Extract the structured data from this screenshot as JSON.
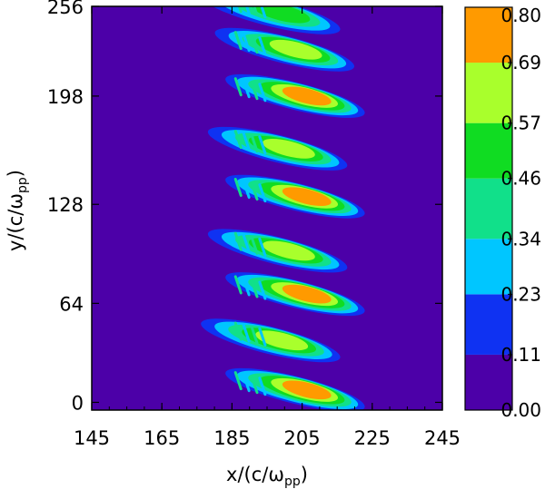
{
  "chart_data": {
    "type": "heatmap",
    "xlabel": {
      "base": "x/(c/",
      "omega": "ω",
      "sub": "pp",
      "close": ")"
    },
    "ylabel": {
      "base": "y/(c/",
      "omega": "ω",
      "sub": "pp",
      "close": ")"
    },
    "xlim": [
      145,
      245
    ],
    "ylim": [
      -5,
      256
    ],
    "x_ticks": [
      "145",
      "165",
      "185",
      "205",
      "225",
      "245"
    ],
    "x_tick_values": [
      145,
      165,
      185,
      205,
      225,
      245
    ],
    "y_ticks": [
      "0",
      "64",
      "128",
      "198",
      "256"
    ],
    "y_tick_values": [
      0,
      64,
      128,
      198,
      256
    ],
    "colorbar": {
      "labels": [
        "0.00",
        "0.11",
        "0.23",
        "0.34",
        "0.46",
        "0.57",
        "0.69",
        "0.80"
      ],
      "levels": [
        0.0,
        0.11,
        0.23,
        0.34,
        0.46,
        0.57,
        0.69,
        0.8
      ],
      "colors": [
        "#4c00a8",
        "#0f32f2",
        "#00c6ff",
        "#11e08a",
        "#10dc22",
        "#a9ff2c",
        "#ff9a00"
      ]
    },
    "background_value": 0.0,
    "structures": [
      {
        "y": 8,
        "peak_x": 207,
        "peak": 0.8
      },
      {
        "y": 40,
        "peak_x": 200,
        "peak": 0.6
      },
      {
        "y": 70,
        "peak_x": 207,
        "peak": 0.8
      },
      {
        "y": 98,
        "peak_x": 202,
        "peak": 0.65
      },
      {
        "y": 133,
        "peak_x": 207,
        "peak": 0.8
      },
      {
        "y": 164,
        "peak_x": 202,
        "peak": 0.65
      },
      {
        "y": 198,
        "peak_x": 207,
        "peak": 0.8
      },
      {
        "y": 228,
        "peak_x": 204,
        "peak": 0.6
      },
      {
        "y": 252,
        "peak_x": 200,
        "peak": 0.5
      }
    ]
  }
}
